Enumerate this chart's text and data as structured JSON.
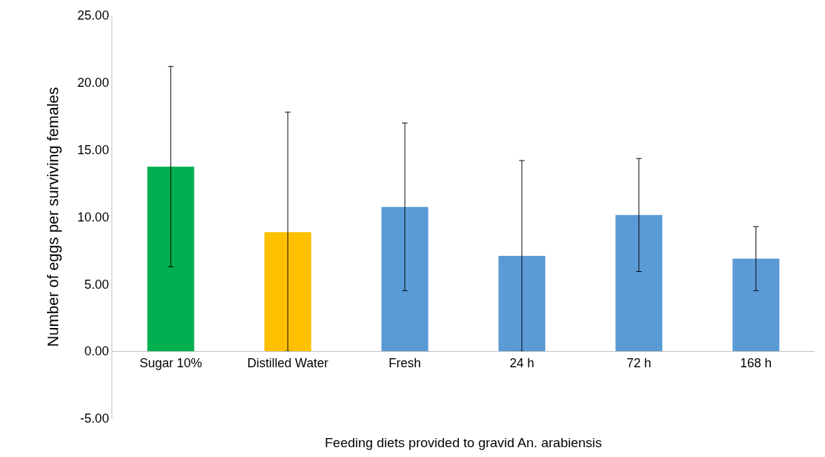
{
  "chart_data": {
    "type": "bar",
    "xlabel": "Feeding diets provided to gravid An. arabiensis",
    "ylabel": "Number of eggs per surviving females",
    "categories": [
      "Sugar 10%",
      "Distilled Water",
      "Fresh",
      "24 h",
      "72 h",
      "168 h"
    ],
    "values": [
      13.74,
      8.87,
      10.75,
      7.1,
      10.14,
      6.9
    ],
    "colors": [
      "#00b050",
      "#ffc000",
      "#5b9bd5",
      "#5b9bd5",
      "#5b9bd5",
      "#5b9bd5"
    ],
    "errors": [
      [
        6.29,
        21.2
      ],
      [
        0,
        17.8
      ],
      [
        4.51,
        16.99
      ],
      [
        0,
        14.2
      ],
      [
        5.93,
        14.35
      ],
      [
        4.51,
        9.28
      ]
    ],
    "ylim": [
      -5,
      25
    ],
    "yticks": [
      {
        "value": -5,
        "label": "-5.00"
      },
      {
        "value": 0,
        "label": "0.00"
      },
      {
        "value": 5,
        "label": "5.00"
      },
      {
        "value": 10,
        "label": "10.00"
      },
      {
        "value": 15,
        "label": "15.00"
      },
      {
        "value": 20,
        "label": "20.00"
      },
      {
        "value": 25,
        "label": "25.00"
      }
    ]
  }
}
